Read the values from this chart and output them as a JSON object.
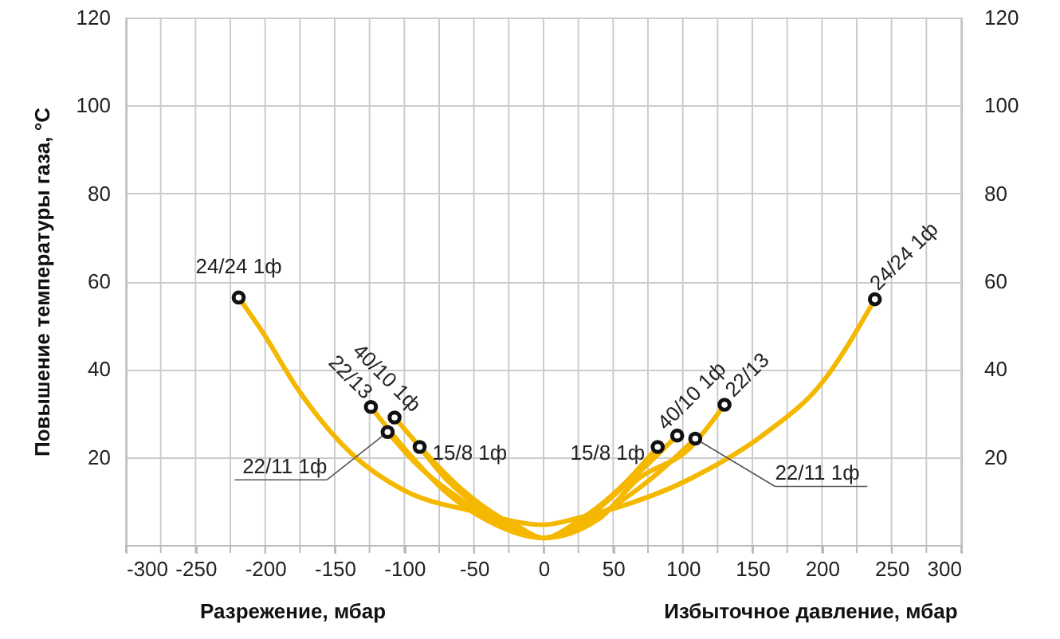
{
  "chart_data": {
    "type": "line",
    "xlabel": "Разрежение, мбар",
    "ylabel": "Повышение температуры газа, °C",
    "xlim": [
      -300,
      300
    ],
    "xticks": [
      -300,
      {
        "value": -275,
        "label": null
      },
      -250,
      {
        "value": -225,
        "label": null
      },
      -200,
      {
        "value": -175,
        "label": null
      },
      -150,
      {
        "value": -125,
        "label": null
      },
      -100,
      {
        "value": -75,
        "label": null
      },
      -50,
      {
        "value": -25,
        "label": null
      },
      0,
      {
        "value": 25,
        "label": null
      },
      50,
      {
        "value": 75,
        "label": null
      },
      100,
      {
        "value": 125,
        "label": null
      },
      150,
      {
        "value": 175,
        "label": null
      },
      200,
      {
        "value": 225,
        "label": null
      },
      250,
      {
        "value": 275,
        "label": null
      },
      300
    ],
    "ylim": [
      0,
      120
    ],
    "yticks": [
      20,
      40,
      60,
      80,
      100,
      120
    ],
    "y2lim": [
      0,
      120
    ],
    "y2ticks": [
      20,
      40,
      60,
      80,
      100,
      120
    ],
    "grid": true,
    "line_style": "solid",
    "series": [
      {
        "color": "#f5b800",
        "x": [
          -219,
          -202,
          -176,
          -138,
          -100,
          -51,
          0,
          28,
          105,
          161,
          199,
          238
        ],
        "values": [
          56.3,
          48.5,
          35.2,
          20.8,
          12.4,
          7.7,
          4.6,
          6.4,
          15,
          25.8,
          36.5,
          55.9
        ]
      },
      {
        "color": "#f5b800",
        "x": [
          -124,
          -100,
          -70,
          -40,
          0,
          40,
          67,
          105,
          130
        ],
        "values": [
          31.4,
          22,
          12,
          5.5,
          1.6,
          6,
          14.8,
          22,
          31.9
        ]
      },
      {
        "color": "#f5b800",
        "x": [
          -107,
          -85,
          -60,
          -30,
          0,
          30,
          60,
          96
        ],
        "values": [
          29,
          21,
          13,
          6,
          1.6,
          6,
          14,
          24.9
        ]
      },
      {
        "color": "#f5b800",
        "x": [
          -112,
          -90,
          -60,
          -30,
          0,
          35,
          75,
          109
        ],
        "values": [
          25.7,
          18,
          10.5,
          5,
          1.6,
          6,
          14.5,
          24.2
        ]
      },
      {
        "color": "#f5b800",
        "x": [
          -89,
          -70,
          -45,
          -20,
          0,
          25,
          55,
          82
        ],
        "values": [
          22.3,
          15,
          8.5,
          4.5,
          1.6,
          5.5,
          13,
          22.3
        ]
      }
    ],
    "annotations": [
      {
        "text": "24/24 1ф",
        "x": -219,
        "y": 56.3
      },
      {
        "text": "22/13",
        "x": -124,
        "y": 31.4
      },
      {
        "text": "40/10 1ф",
        "x": -107,
        "y": 29
      },
      {
        "text": "22/11 1ф",
        "x": -112,
        "y": 25.7
      },
      {
        "text": "15/8 1ф",
        "x": -89,
        "y": 22.3
      },
      {
        "text": "15/8 1ф",
        "x": 82,
        "y": 22.3
      },
      {
        "text": "40/10 1ф",
        "x": 96,
        "y": 24.9
      },
      {
        "text": "22/11 1ф",
        "x": 109,
        "y": 24.2
      },
      {
        "text": "22/13",
        "x": 130,
        "y": 31.9
      },
      {
        "text": "24/24 1ф",
        "x": 238,
        "y": 55.9
      },
      "Избыточное давление, мбар"
    ]
  }
}
